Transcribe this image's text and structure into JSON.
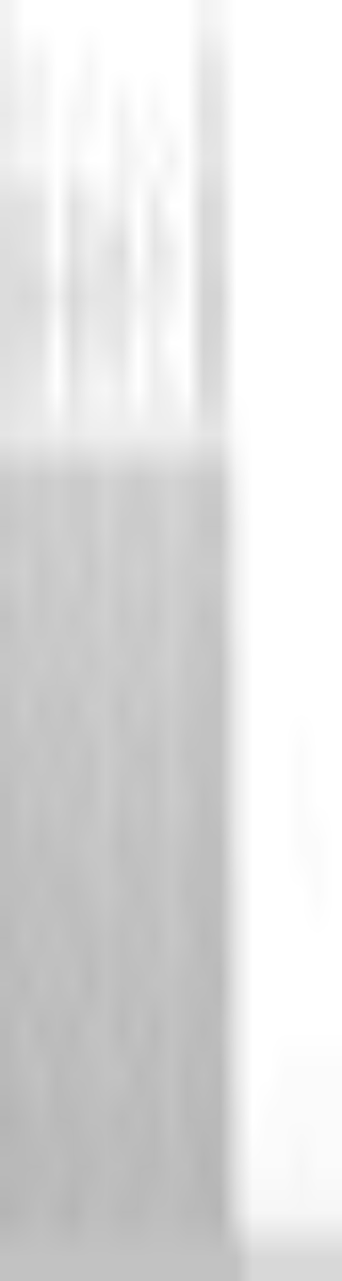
{
  "chart_data": {
    "type": "heatmap",
    "tick_labels": false,
    "grid": false,
    "zlim": [
      0,
      1
    ],
    "z": [
      [
        0.15,
        0,
        0,
        0,
        0,
        0,
        0,
        0,
        0,
        0,
        0,
        0,
        0.15,
        0.1,
        0,
        0,
        0,
        0,
        0,
        0,
        0
      ],
      [
        0.2,
        0.1,
        0.15,
        0,
        0,
        0.1,
        0,
        0,
        0,
        0,
        0,
        0,
        0.3,
        0.25,
        0,
        0,
        0,
        0,
        0,
        0,
        0
      ],
      [
        0.25,
        0.15,
        0.15,
        0,
        0.1,
        0.1,
        0,
        0.15,
        0,
        0.1,
        0,
        0,
        0.35,
        0.3,
        0,
        0,
        0,
        0,
        0,
        0,
        0
      ],
      [
        0.2,
        0.1,
        0.1,
        0,
        0.1,
        0,
        0,
        0.15,
        0.1,
        0,
        0.15,
        0,
        0.3,
        0.3,
        0,
        0,
        0,
        0,
        0,
        0,
        0
      ],
      [
        0.35,
        0.35,
        0.3,
        0,
        0.35,
        0.2,
        0.1,
        0.2,
        0,
        0.25,
        0,
        0,
        0.45,
        0.4,
        0,
        0,
        0,
        0,
        0,
        0,
        0
      ],
      [
        0.4,
        0.35,
        0.3,
        0,
        0.35,
        0.2,
        0.3,
        0.4,
        0,
        0.3,
        0.2,
        0,
        0.45,
        0.4,
        0,
        0,
        0,
        0,
        0,
        0,
        0
      ],
      [
        0.4,
        0.45,
        0.4,
        0.15,
        0.45,
        0.3,
        0.3,
        0.3,
        0.15,
        0.2,
        0.15,
        0,
        0.5,
        0.5,
        0,
        0,
        0,
        0,
        0,
        0,
        0
      ],
      [
        0.4,
        0.35,
        0.35,
        0,
        0.4,
        0.2,
        0.25,
        0.3,
        0,
        0.2,
        0,
        0,
        0.5,
        0.45,
        0,
        0,
        0,
        0,
        0,
        0,
        0
      ],
      [
        0.35,
        0.3,
        0.25,
        0,
        0.3,
        0.15,
        0.1,
        0.2,
        0,
        0.2,
        0.15,
        0,
        0.45,
        0.4,
        0,
        0,
        0,
        0,
        0,
        0,
        0
      ],
      [
        0.3,
        0.25,
        0.25,
        0.2,
        0.25,
        0.2,
        0.2,
        0.2,
        0.2,
        0.2,
        0.2,
        0.2,
        0.3,
        0.3,
        0.05,
        0,
        0,
        0,
        0,
        0,
        0
      ],
      [
        0.6,
        0.55,
        0.6,
        0.55,
        0.6,
        0.6,
        0.5,
        0.55,
        0.6,
        0.55,
        0.5,
        0.55,
        0.6,
        0.6,
        0.15,
        0,
        0,
        0,
        0,
        0,
        0
      ],
      [
        0.65,
        0.6,
        0.6,
        0.55,
        0.6,
        0.6,
        0.5,
        0.6,
        0.6,
        0.6,
        0.5,
        0.55,
        0.65,
        0.65,
        0.2,
        0,
        0,
        0,
        0,
        0,
        0
      ],
      [
        0.6,
        0.55,
        0.65,
        0.6,
        0.55,
        0.65,
        0.55,
        0.6,
        0.55,
        0.6,
        0.55,
        0.6,
        0.6,
        0.6,
        0.2,
        0,
        0,
        0,
        0,
        0,
        0
      ],
      [
        0.7,
        0.6,
        0.65,
        0.6,
        0.65,
        0.6,
        0.55,
        0.65,
        0.6,
        0.65,
        0.55,
        0.6,
        0.7,
        0.65,
        0.2,
        0,
        0,
        0,
        0,
        0,
        0
      ],
      [
        0.65,
        0.65,
        0.6,
        0.65,
        0.6,
        0.65,
        0.6,
        0.6,
        0.65,
        0.6,
        0.55,
        0.65,
        0.65,
        0.7,
        0.25,
        0,
        0,
        0,
        0,
        0,
        0
      ],
      [
        0.7,
        0.6,
        0.7,
        0.65,
        0.7,
        0.6,
        0.6,
        0.7,
        0.6,
        0.65,
        0.6,
        0.65,
        0.7,
        0.7,
        0.25,
        0,
        0,
        0,
        0,
        0,
        0
      ],
      [
        0.7,
        0.7,
        0.65,
        0.7,
        0.65,
        0.7,
        0.6,
        0.65,
        0.7,
        0.7,
        0.6,
        0.7,
        0.7,
        0.7,
        0.25,
        0,
        0,
        0,
        0.05,
        0,
        0
      ],
      [
        0.75,
        0.65,
        0.7,
        0.65,
        0.7,
        0.7,
        0.6,
        0.7,
        0.65,
        0.7,
        0.6,
        0.65,
        0.75,
        0.7,
        0.25,
        0,
        0,
        0,
        0.05,
        0,
        0
      ],
      [
        0.75,
        0.7,
        0.75,
        0.7,
        0.7,
        0.65,
        0.65,
        0.75,
        0.7,
        0.7,
        0.65,
        0.7,
        0.75,
        0.75,
        0.25,
        0,
        0,
        0,
        0.05,
        0.05,
        0
      ],
      [
        0.75,
        0.75,
        0.7,
        0.75,
        0.75,
        0.7,
        0.65,
        0.7,
        0.75,
        0.7,
        0.65,
        0.75,
        0.75,
        0.75,
        0.3,
        0,
        0,
        0,
        0,
        0.05,
        0
      ],
      [
        0.8,
        0.7,
        0.75,
        0.7,
        0.75,
        0.75,
        0.7,
        0.75,
        0.7,
        0.75,
        0.65,
        0.7,
        0.8,
        0.75,
        0.3,
        0,
        0,
        0,
        0,
        0,
        0
      ],
      [
        0.75,
        0.8,
        0.7,
        0.75,
        0.7,
        0.8,
        0.7,
        0.75,
        0.75,
        0.7,
        0.7,
        0.75,
        0.75,
        0.8,
        0.3,
        0,
        0,
        0,
        0,
        0,
        0
      ],
      [
        0.8,
        0.7,
        0.8,
        0.75,
        0.8,
        0.7,
        0.7,
        0.8,
        0.7,
        0.8,
        0.7,
        0.75,
        0.8,
        0.75,
        0.3,
        0,
        0,
        0,
        0,
        0,
        0
      ],
      [
        0.8,
        0.75,
        0.7,
        0.8,
        0.75,
        0.75,
        0.7,
        0.7,
        0.8,
        0.75,
        0.7,
        0.8,
        0.75,
        0.8,
        0.3,
        0,
        0,
        0.05,
        0.05,
        0.05,
        0.05
      ],
      [
        0.85,
        0.8,
        0.75,
        0.8,
        0.8,
        0.75,
        0.75,
        0.8,
        0.75,
        0.8,
        0.7,
        0.8,
        0.8,
        0.8,
        0.35,
        0,
        0.05,
        0.05,
        0.05,
        0.05,
        0.05
      ],
      [
        0.8,
        0.8,
        0.8,
        0.75,
        0.8,
        0.8,
        0.75,
        0.75,
        0.8,
        0.8,
        0.75,
        0.75,
        0.85,
        0.8,
        0.35,
        0.05,
        0.05,
        0.05,
        0.1,
        0.05,
        0.05
      ],
      [
        0.85,
        0.8,
        0.75,
        0.8,
        0.85,
        0.75,
        0.75,
        0.8,
        0.8,
        0.75,
        0.75,
        0.8,
        0.8,
        0.85,
        0.4,
        0.1,
        0.1,
        0.1,
        0.1,
        0.1,
        0.1
      ],
      [
        0.7,
        0.7,
        0.7,
        0.7,
        0.7,
        0.7,
        0.7,
        0.7,
        0.7,
        0.7,
        0.7,
        0.7,
        0.7,
        0.7,
        0.7,
        0.45,
        0.45,
        0.45,
        0.45,
        0.45,
        0.45
      ]
    ]
  }
}
